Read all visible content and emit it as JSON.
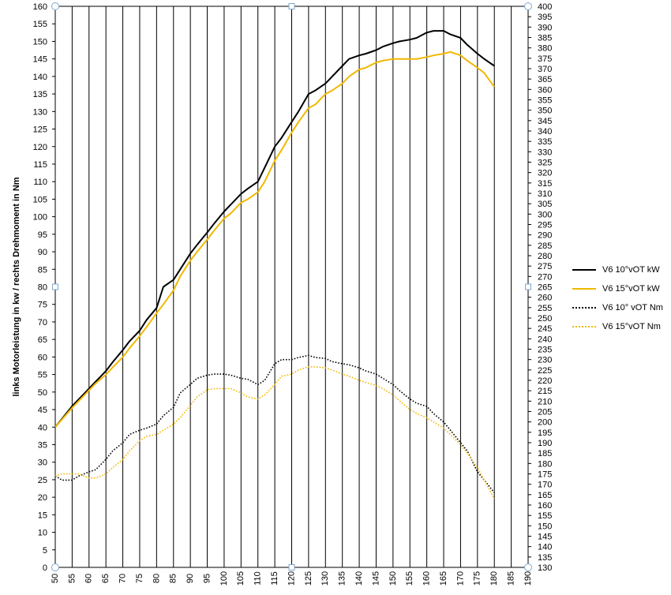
{
  "chart_data": {
    "type": "line",
    "ylabel": "links Motorleistung in kw / rechts Drehmoment in Nm",
    "xlim": [
      50,
      190
    ],
    "x_ticks": [
      "50",
      "55",
      "60",
      "65",
      "70",
      "75",
      "80",
      "85",
      "90",
      "95",
      "100",
      "105",
      "110",
      "115",
      "120",
      "125",
      "130",
      "135",
      "140",
      "145",
      "150",
      "155",
      "160",
      "165",
      "170",
      "175",
      "180",
      "185",
      "190"
    ],
    "ylim_left": [
      0,
      160
    ],
    "y_left_ticks": [
      "0",
      "5",
      "10",
      "15",
      "20",
      "25",
      "30",
      "35",
      "40",
      "45",
      "50",
      "55",
      "60",
      "65",
      "70",
      "75",
      "80",
      "85",
      "90",
      "95",
      "100",
      "105",
      "110",
      "115",
      "120",
      "125",
      "130",
      "135",
      "140",
      "145",
      "150",
      "155",
      "160"
    ],
    "ylim_right": [
      130,
      400
    ],
    "y_right_ticks": [
      "130",
      "135",
      "140",
      "145",
      "150",
      "155",
      "160",
      "165",
      "170",
      "175",
      "180",
      "185",
      "190",
      "195",
      "200",
      "205",
      "210",
      "215",
      "220",
      "225",
      "230",
      "235",
      "240",
      "245",
      "250",
      "255",
      "260",
      "265",
      "270",
      "275",
      "280",
      "285",
      "290",
      "295",
      "300",
      "305",
      "310",
      "315",
      "320",
      "325",
      "330",
      "335",
      "340",
      "345",
      "350",
      "355",
      "360",
      "365",
      "370",
      "375",
      "380",
      "385",
      "390",
      "395",
      "400"
    ],
    "grid": "vertical",
    "legend_position": "right",
    "series": [
      {
        "name": "V6 10°vOT kW",
        "axis": "left",
        "color": "#000000",
        "style": "solid",
        "x": [
          50,
          55,
          60,
          62,
          65,
          67,
          70,
          72,
          75,
          77,
          80,
          82,
          85,
          87,
          90,
          92,
          95,
          97,
          100,
          102,
          105,
          107,
          110,
          112,
          115,
          117,
          120,
          122,
          125,
          127,
          130,
          132,
          135,
          137,
          140,
          142,
          145,
          147,
          150,
          152,
          155,
          157,
          160,
          162,
          165,
          167,
          170,
          172,
          175,
          177,
          180
        ],
        "values": [
          40,
          46,
          51,
          53,
          56,
          58.5,
          62,
          64.5,
          67.5,
          70.5,
          74,
          80,
          82,
          85,
          89.5,
          92,
          95.5,
          98,
          101.5,
          103.5,
          106.5,
          108,
          110,
          114,
          120,
          122.5,
          127,
          130,
          135,
          136,
          138,
          140,
          143,
          145,
          146,
          146.5,
          147.5,
          148.5,
          149.5,
          150,
          150.5,
          151,
          152.5,
          153,
          153,
          152,
          151,
          149,
          146.5,
          145,
          143
        ]
      },
      {
        "name": "V6 15°vOT kW",
        "axis": "left",
        "color": "#f0b800",
        "style": "solid",
        "x": [
          50,
          55,
          60,
          62,
          65,
          67,
          70,
          72,
          75,
          77,
          80,
          82,
          85,
          87,
          90,
          92,
          95,
          97,
          100,
          102,
          105,
          107,
          110,
          112,
          115,
          117,
          120,
          122,
          125,
          127,
          130,
          132,
          135,
          137,
          140,
          142,
          145,
          147,
          150,
          152,
          155,
          157,
          160,
          162,
          165,
          167,
          170,
          172,
          175,
          177,
          180
        ],
        "values": [
          40,
          45.5,
          50.5,
          52.5,
          55,
          57,
          60,
          62.5,
          66,
          68.5,
          72.5,
          75,
          79,
          83,
          87.5,
          90,
          93.5,
          96,
          99.5,
          101,
          104,
          105,
          107,
          110,
          116,
          119,
          124,
          127,
          131,
          132,
          135,
          136,
          138,
          140,
          142,
          142.5,
          144,
          144.5,
          145,
          145,
          145,
          145,
          145.5,
          146,
          146.5,
          147,
          146,
          144.5,
          142.5,
          141,
          137
        ]
      },
      {
        "name": "V6 10° vOT Nm",
        "axis": "right",
        "color": "#000000",
        "style": "dotted",
        "x": [
          50,
          52,
          55,
          57,
          60,
          62,
          65,
          67,
          70,
          72,
          75,
          77,
          80,
          82,
          85,
          87,
          90,
          92,
          95,
          97,
          100,
          102,
          105,
          107,
          110,
          112,
          115,
          117,
          120,
          122,
          125,
          127,
          130,
          132,
          135,
          137,
          140,
          142,
          145,
          147,
          150,
          152,
          155,
          157,
          160,
          162,
          165,
          167,
          170,
          172,
          175,
          177,
          180
        ],
        "values": [
          174,
          172,
          172,
          174,
          176,
          177,
          182,
          186,
          190,
          194,
          196,
          197,
          199,
          203,
          207,
          214,
          218,
          221,
          222.5,
          223,
          223,
          222.5,
          221,
          220.5,
          218,
          220,
          228,
          230,
          230,
          231,
          232,
          231,
          230.5,
          229,
          228,
          227.5,
          226,
          224.5,
          223,
          221,
          218,
          215,
          211,
          209,
          207.5,
          204,
          200,
          196,
          190,
          186,
          176,
          172,
          166
        ]
      },
      {
        "name": "V6 15°vOT Nm",
        "axis": "right",
        "color": "#f0b800",
        "style": "dotted",
        "x": [
          50,
          52,
          55,
          57,
          60,
          62,
          65,
          67,
          70,
          72,
          75,
          77,
          80,
          82,
          85,
          87,
          90,
          92,
          95,
          97,
          100,
          102,
          105,
          107,
          110,
          112,
          115,
          117,
          120,
          122,
          125,
          127,
          130,
          132,
          135,
          137,
          140,
          142,
          145,
          147,
          150,
          152,
          155,
          157,
          160,
          162,
          165,
          167,
          170,
          172,
          175,
          177,
          180
        ],
        "values": [
          174,
          175,
          175,
          175,
          173,
          173,
          175,
          178,
          182,
          186,
          191,
          193,
          194,
          196,
          199,
          202,
          208,
          212,
          215.5,
          216,
          216,
          216,
          214,
          212,
          211,
          213,
          218,
          222,
          223,
          225,
          226.5,
          226.5,
          226,
          225,
          223,
          222,
          220,
          219,
          217.5,
          216,
          213,
          210,
          206,
          204,
          202,
          200,
          197,
          194,
          189,
          185,
          178,
          172,
          163
        ]
      }
    ]
  }
}
